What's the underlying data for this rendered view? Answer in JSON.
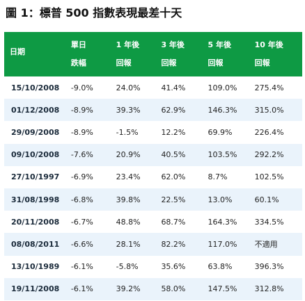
{
  "title": "圖 1：標普 500 指數表現最差十天",
  "headers": [
    {
      "l1": "日期",
      "l2": ""
    },
    {
      "l1": "單日",
      "l2": "跌幅"
    },
    {
      "l1": "1 年後",
      "l2": "回報"
    },
    {
      "l1": "3 年後",
      "l2": "回報"
    },
    {
      "l1": "5 年後",
      "l2": "回報"
    },
    {
      "l1": "10 年後",
      "l2": "回報"
    }
  ],
  "rows": [
    [
      "15/10/2008",
      "-9.0%",
      "24.0%",
      "41.4%",
      "109.0%",
      "275.4%"
    ],
    [
      "01/12/2008",
      "-8.9%",
      "39.3%",
      "62.9%",
      "146.3%",
      "315.0%"
    ],
    [
      "29/09/2008",
      "-8.9%",
      "-1.5%",
      "12.2%",
      "69.9%",
      "226.4%"
    ],
    [
      "09/10/2008",
      "-7.6%",
      "20.9%",
      "40.5%",
      "103.5%",
      "292.2%"
    ],
    [
      "27/10/1997",
      "-6.9%",
      "23.4%",
      "62.0%",
      "8.7%",
      "102.5%"
    ],
    [
      "31/08/1998",
      "-6.8%",
      "39.8%",
      "22.5%",
      "13.0%",
      "60.1%"
    ],
    [
      "20/11/2008",
      "-6.7%",
      "48.8%",
      "68.7%",
      "164.3%",
      "334.5%"
    ],
    [
      "08/08/2011",
      "-6.6%",
      "28.1%",
      "82.2%",
      "117.0%",
      "不適用"
    ],
    [
      "13/10/1989",
      "-6.1%",
      "-5.8%",
      "35.6%",
      "63.8%",
      "396.3%"
    ],
    [
      "19/11/2008",
      "-6.1%",
      "39.2%",
      "58.0%",
      "147.5%",
      "312.8%"
    ]
  ]
}
